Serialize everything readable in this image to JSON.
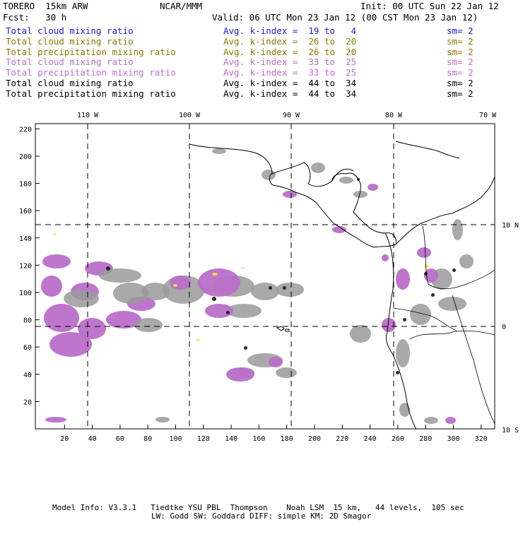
{
  "header": {
    "model": "TORERO  15km ARW",
    "org": "NCAR/MMM",
    "init": "Init: 00 UTC Sun 22 Jan 12",
    "fcst": "Fcst:   30 h",
    "valid": "Valid: 06 UTC Mon 23 Jan 12 (00 CST Mon 23 Jan 12)"
  },
  "legend": [
    {
      "field": "Total cloud mixing ratio",
      "avg": "Avg. k-index =  19 to   4",
      "sm": "sm= 2",
      "color": "#1e1ed2"
    },
    {
      "field": "Total cloud mixing ratio",
      "avg": "Avg. k-index =  26 to  20",
      "sm": "sm= 2",
      "color": "#8a7a00"
    },
    {
      "field": "Total precipitation mixing ratio",
      "avg": "Avg. k-index =  26 to  20",
      "sm": "sm= 2",
      "color": "#8a7a00"
    },
    {
      "field": "Total cloud mixing ratio",
      "avg": "Avg. k-index =  33 to  25",
      "sm": "sm= 2",
      "color": "#b96fc8"
    },
    {
      "field": "Total precipitation mixing ratio",
      "avg": "Avg. k-index =  33 to  25",
      "sm": "sm= 2",
      "color": "#b96fc8"
    },
    {
      "field": "Total cloud mixing ratio",
      "avg": "Avg. k-index =  44 to  34",
      "sm": "sm= 2",
      "color": "#000000"
    },
    {
      "field": "Total precipitation mixing ratio",
      "avg": "Avg. k-index =  44 to  34",
      "sm": "sm= 2",
      "color": "#000000"
    }
  ],
  "map": {
    "top_lon_labels": [
      "110 W",
      "100 W",
      "90 W",
      "80 W",
      "70 W"
    ],
    "right_lat_labels": [
      "10 N",
      "0",
      "10 S"
    ],
    "x_ticks": [
      "20",
      "40",
      "60",
      "80",
      "100",
      "120",
      "140",
      "160",
      "180",
      "200",
      "220",
      "240",
      "260",
      "280",
      "300",
      "320"
    ],
    "y_ticks": [
      "20",
      "40",
      "60",
      "80",
      "100",
      "120",
      "140",
      "160",
      "180",
      "200",
      "220"
    ],
    "colors": {
      "gray": "#9a9a9a",
      "purple": "#b96fc8",
      "black": "#202020",
      "yellow": "#f0e040",
      "cyan": "#cdeef5"
    }
  },
  "footer": {
    "line1": "Model Info: V3.3.1   Tiedtke YSU PBL  Thompson    Noah LSM  15 km,   44 levels,  105 sec",
    "line2": "LW: Godd SW: Goddard DIFF: simple KM: 2D Smagor"
  }
}
